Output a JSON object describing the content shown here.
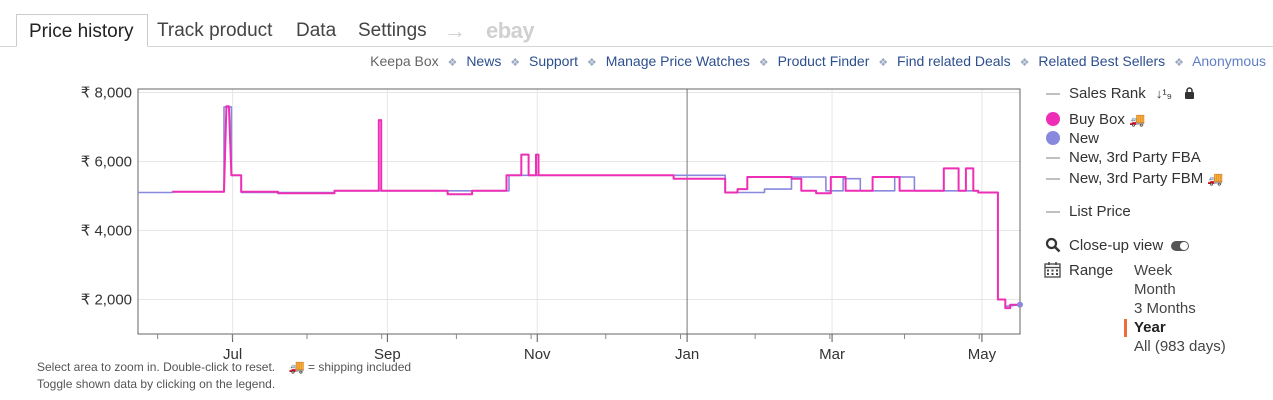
{
  "tabs": {
    "price_history": "Price history",
    "track_product": "Track product",
    "data": "Data",
    "settings": "Settings",
    "arrow": "→",
    "ebay": "ebay"
  },
  "links": {
    "keepa_box": "Keepa Box",
    "news": "News",
    "support": "Support",
    "manage": "Manage Price Watches",
    "finder": "Product Finder",
    "deals": "Find related Deals",
    "best_sellers": "Related Best Sellers",
    "anonymous": "Anonymous"
  },
  "legend": {
    "sales_rank": "Sales Rank",
    "sales_rank_icon": "↓¹₉",
    "buy_box": "Buy Box",
    "new": "New",
    "new_fba": "New, 3rd Party FBA",
    "new_fbm": "New, 3rd Party FBM",
    "list_price": "List Price",
    "closeup": "Close-up view",
    "range": "Range",
    "range_options": [
      "Week",
      "Month",
      "3 Months",
      "Year",
      "All (983 days)"
    ],
    "selected_range": "Year",
    "colors": {
      "buy_box": "#ee2fb5",
      "new": "#8888dd",
      "inactive": "#c0c0c0",
      "range_marker": "#ef6c3a"
    }
  },
  "footer": {
    "line1_a": "Select area to zoom in. Double-click to reset.",
    "line1_b": "= shipping included",
    "line2": "Toggle shown data by clicking on the legend."
  },
  "chart_data": {
    "type": "line",
    "y_tick_labels": [
      "₹ 2,000",
      "₹ 4,000",
      "₹ 6,000",
      "₹ 8,000"
    ],
    "y_tick_values": [
      2000,
      4000,
      6000,
      8000
    ],
    "ylim": [
      1000,
      8100
    ],
    "x_tick_labels": [
      "Jul",
      "Sep",
      "Nov",
      "Jan",
      "Mar",
      "May"
    ],
    "x_tick_values": [
      30.5,
      93.5,
      154.5,
      215.5,
      274.5,
      335.5
    ],
    "xlim": [
      -8,
      351
    ],
    "x_unit": "days from Jun 1",
    "grid": true,
    "series": [
      {
        "name": "New",
        "color": "#8888dd",
        "points": [
          [
            -8,
            5100
          ],
          [
            6,
            5100
          ],
          [
            6,
            5120
          ],
          [
            27,
            5120
          ],
          [
            27,
            7580
          ],
          [
            30,
            7580
          ],
          [
            30,
            5600
          ],
          [
            34,
            5600
          ],
          [
            34,
            5100
          ],
          [
            72,
            5100
          ],
          [
            72,
            5150
          ],
          [
            143,
            5150
          ],
          [
            143,
            5600
          ],
          [
            210,
            5600
          ],
          [
            215,
            5600
          ],
          [
            231,
            5600
          ],
          [
            231,
            5100
          ],
          [
            247,
            5100
          ],
          [
            247,
            5200
          ],
          [
            258,
            5200
          ],
          [
            258,
            5550
          ],
          [
            272,
            5550
          ],
          [
            272,
            5150
          ],
          [
            279,
            5150
          ],
          [
            279,
            5500
          ],
          [
            286,
            5500
          ],
          [
            286,
            5150
          ],
          [
            300,
            5150
          ],
          [
            300,
            5550
          ],
          [
            308,
            5550
          ],
          [
            308,
            5150
          ],
          [
            334,
            5150
          ],
          [
            334,
            5100
          ],
          [
            342,
            5100
          ],
          [
            342,
            2000
          ],
          [
            345,
            2000
          ],
          [
            345,
            1800
          ],
          [
            351,
            1850
          ]
        ]
      },
      {
        "name": "Buy Box",
        "color": "#ee2fb5",
        "points": [
          [
            6,
            5120
          ],
          [
            27,
            5120
          ],
          [
            27,
            5120
          ],
          [
            28,
            7600
          ],
          [
            29,
            7600
          ],
          [
            30,
            5600
          ],
          [
            34,
            5600
          ],
          [
            34,
            5120
          ],
          [
            49,
            5120
          ],
          [
            49,
            5080
          ],
          [
            72,
            5080
          ],
          [
            72,
            5150
          ],
          [
            90,
            5150
          ],
          [
            90,
            7200
          ],
          [
            91,
            7200
          ],
          [
            91,
            5150
          ],
          [
            118,
            5150
          ],
          [
            118,
            5050
          ],
          [
            128,
            5050
          ],
          [
            128,
            5150
          ],
          [
            142,
            5150
          ],
          [
            142,
            5600
          ],
          [
            148,
            5600
          ],
          [
            148,
            6200
          ],
          [
            151,
            6200
          ],
          [
            151,
            5600
          ],
          [
            154,
            5600
          ],
          [
            154,
            6200
          ],
          [
            155,
            6200
          ],
          [
            155,
            5600
          ],
          [
            210,
            5600
          ],
          [
            210,
            5500
          ],
          [
            231,
            5500
          ],
          [
            231,
            5100
          ],
          [
            236,
            5100
          ],
          [
            236,
            5200
          ],
          [
            240,
            5200
          ],
          [
            240,
            5550
          ],
          [
            258,
            5550
          ],
          [
            258,
            5500
          ],
          [
            262,
            5500
          ],
          [
            262,
            5150
          ],
          [
            268,
            5150
          ],
          [
            268,
            5080
          ],
          [
            274,
            5080
          ],
          [
            274,
            5550
          ],
          [
            280,
            5550
          ],
          [
            280,
            5150
          ],
          [
            291,
            5150
          ],
          [
            291,
            5550
          ],
          [
            302,
            5550
          ],
          [
            302,
            5150
          ],
          [
            320,
            5150
          ],
          [
            320,
            5800
          ],
          [
            326,
            5800
          ],
          [
            326,
            5150
          ],
          [
            329,
            5150
          ],
          [
            329,
            5800
          ],
          [
            332,
            5800
          ],
          [
            332,
            5150
          ],
          [
            334,
            5150
          ],
          [
            334,
            5100
          ],
          [
            342,
            5100
          ],
          [
            342,
            2000
          ],
          [
            345,
            2000
          ],
          [
            345,
            1750
          ],
          [
            347,
            1750
          ],
          [
            347,
            1850
          ],
          [
            351,
            1850
          ]
        ]
      }
    ]
  }
}
